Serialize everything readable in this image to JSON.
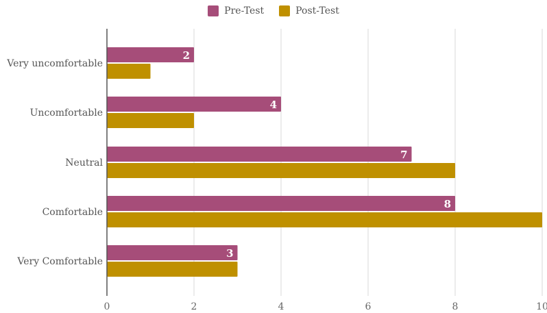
{
  "chart_data": {
    "type": "bar",
    "orientation": "horizontal",
    "categories": [
      "Very uncomfortable",
      "Uncomfortable",
      "Neutral",
      "Comfortable",
      "Very Comfortable"
    ],
    "series": [
      {
        "name": "Pre-Test",
        "values": [
          2,
          4,
          7,
          8,
          3
        ],
        "color": "#A64D79",
        "show_data_labels": true
      },
      {
        "name": "Post-Test",
        "values": [
          1,
          2,
          8,
          10,
          3
        ],
        "color": "#BF9000",
        "show_data_labels": false
      }
    ],
    "title": "",
    "xlabel": "",
    "ylabel": "",
    "xlim": [
      0,
      10
    ],
    "xticks": [
      0,
      2,
      4,
      6,
      8,
      10
    ],
    "grid": true,
    "legend_position": "top"
  }
}
